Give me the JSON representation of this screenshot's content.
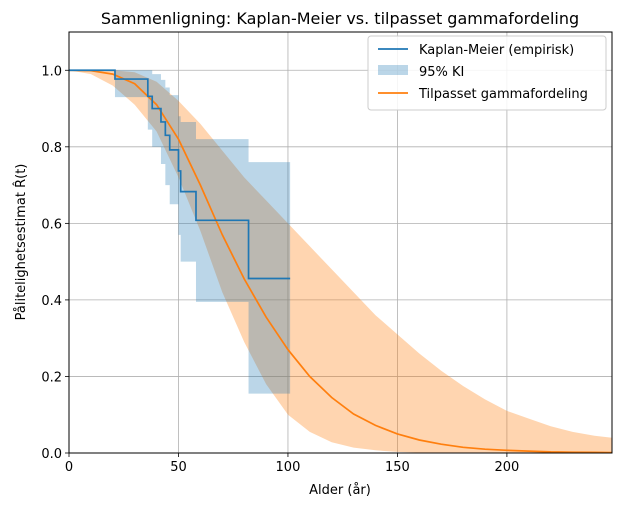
{
  "chart_data": {
    "type": "line",
    "title": "Sammenligning: Kaplan-Meier vs. tilpasset gammafordeling",
    "xlabel": "Alder (år)",
    "ylabel": "Pålitelighetsestimat R̂(t)",
    "xlim": [
      0,
      248
    ],
    "ylim": [
      0,
      1.1
    ],
    "xticks": [
      0,
      50,
      100,
      150,
      200
    ],
    "yticks": [
      0.0,
      0.2,
      0.4,
      0.6,
      0.8,
      1.0
    ],
    "xtick_labels": [
      "0",
      "50",
      "100",
      "150",
      "200"
    ],
    "ytick_labels": [
      "0.0",
      "0.2",
      "0.4",
      "0.6",
      "0.8",
      "1.0"
    ],
    "grid": true,
    "legend_position": "top-right",
    "legend": [
      {
        "label": "Kaplan-Meier (empirisk)",
        "kind": "line",
        "color": "#1f77b4"
      },
      {
        "label": "95% KI",
        "kind": "patch",
        "color": "#1f77b4"
      },
      {
        "label": "Tilpasset gammafordeling",
        "kind": "line",
        "color": "#ff7f0e"
      }
    ],
    "km_steps": {
      "t": [
        0,
        21,
        36,
        38,
        42,
        44,
        46,
        50,
        51,
        58,
        82,
        101
      ],
      "s": [
        1.0,
        0.977,
        0.932,
        0.9,
        0.865,
        0.83,
        0.792,
        0.737,
        0.683,
        0.608,
        0.456,
        0.456
      ],
      "lower": [
        1.0,
        0.93,
        0.845,
        0.8,
        0.755,
        0.7,
        0.65,
        0.57,
        0.5,
        0.395,
        0.155,
        0.155
      ],
      "upper": [
        1.0,
        1.0,
        1.0,
        0.99,
        0.975,
        0.955,
        0.935,
        0.88,
        0.865,
        0.82,
        0.76,
        0.76
      ]
    },
    "gamma_fit": {
      "x": [
        0,
        10,
        20,
        30,
        40,
        50,
        60,
        70,
        80,
        90,
        100,
        110,
        120,
        130,
        140,
        150,
        160,
        170,
        180,
        190,
        200,
        210,
        220,
        230,
        240,
        248
      ],
      "y": [
        1.0,
        0.999,
        0.99,
        0.965,
        0.91,
        0.82,
        0.7,
        0.57,
        0.455,
        0.355,
        0.27,
        0.2,
        0.145,
        0.102,
        0.072,
        0.05,
        0.034,
        0.023,
        0.015,
        0.01,
        0.007,
        0.005,
        0.003,
        0.002,
        0.0015,
        0.001
      ],
      "lower": [
        1.0,
        0.99,
        0.96,
        0.91,
        0.84,
        0.72,
        0.58,
        0.42,
        0.29,
        0.18,
        0.1,
        0.055,
        0.028,
        0.014,
        0.007,
        0.003,
        0.001,
        0.0005,
        0,
        0,
        0,
        0,
        0,
        0,
        0,
        0
      ],
      "upper": [
        1.0,
        1.0,
        1.0,
        0.995,
        0.97,
        0.92,
        0.86,
        0.79,
        0.72,
        0.66,
        0.6,
        0.54,
        0.48,
        0.42,
        0.36,
        0.31,
        0.26,
        0.215,
        0.175,
        0.14,
        0.11,
        0.09,
        0.07,
        0.055,
        0.045,
        0.04
      ]
    },
    "colors": {
      "km": "#1f77b4",
      "km_ci": "#1f77b4",
      "gamma": "#ff7f0e",
      "gamma_ci": "#ff7f0e",
      "grid": "#b0b0b0"
    }
  }
}
